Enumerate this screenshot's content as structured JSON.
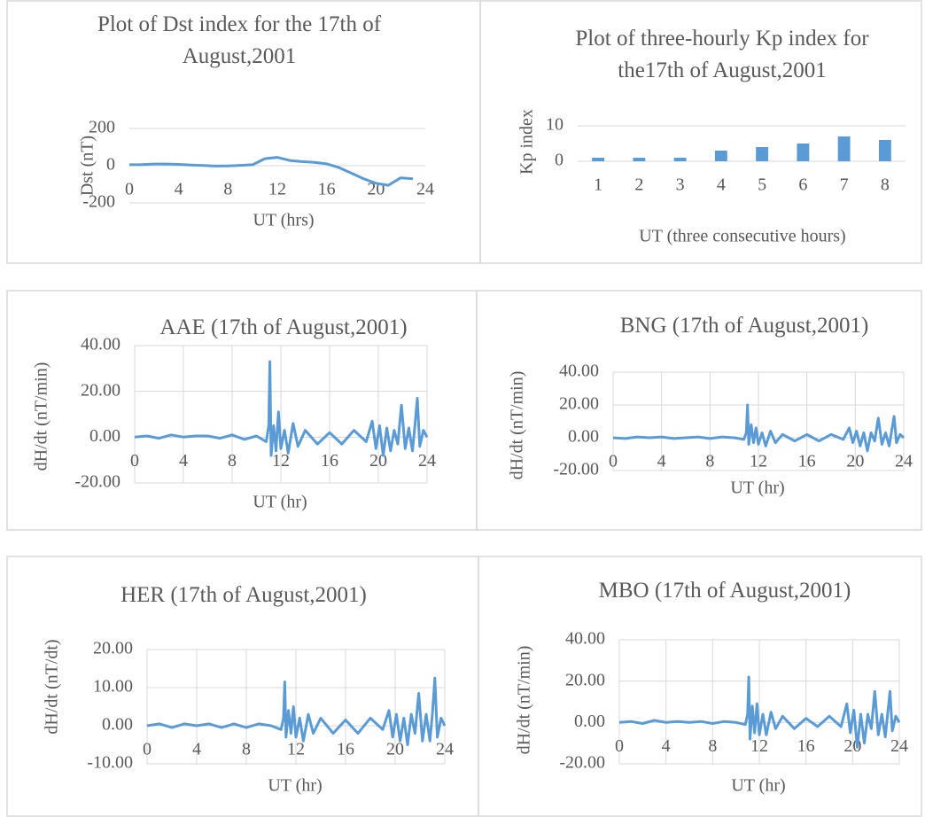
{
  "chart_data": [
    {
      "type": "line",
      "title": "Plot of Dst index for the 17th of August,2001",
      "x_label": "UT (hrs)",
      "y_label": "Dst (nT)",
      "color": "#5b9bd5",
      "x": [
        0,
        1,
        2,
        3,
        4,
        5,
        6,
        7,
        8,
        9,
        10,
        11,
        12,
        13,
        14,
        15,
        16,
        17,
        18,
        19,
        20,
        21,
        22,
        23
      ],
      "values": [
        5,
        6,
        9,
        9,
        7,
        4,
        1,
        -2,
        -1,
        2,
        5,
        38,
        45,
        28,
        22,
        18,
        10,
        -10,
        -40,
        -70,
        -95,
        -105,
        -65,
        -70
      ],
      "xlim": [
        0,
        24
      ],
      "xticks": [
        0,
        4,
        8,
        12,
        16,
        20,
        24
      ],
      "ylim": [
        -200,
        200
      ],
      "yticks": [
        -200,
        0,
        200
      ],
      "grid": true
    },
    {
      "type": "bar",
      "title": "Plot of three-hourly Kp index for the17th of August,2001",
      "x_label": "UT (three consecutive hours)",
      "y_label": "Kp index",
      "color": "#5b9bd5",
      "categories": [
        "1",
        "2",
        "3",
        "4",
        "5",
        "6",
        "7",
        "8"
      ],
      "values": [
        1,
        1,
        1,
        3,
        4,
        5,
        7,
        6
      ],
      "ylim": [
        0,
        10
      ],
      "yticks": [
        0,
        10
      ],
      "grid": true
    },
    {
      "type": "line",
      "title": "AAE (17th of August,2001)",
      "x_label": "UT (hr)",
      "y_label": "dH/dt (nT/min)",
      "color": "#5b9bd5",
      "x": [
        0,
        1,
        2,
        3,
        4,
        5,
        6,
        7,
        8,
        9,
        10,
        10.8,
        11,
        11.1,
        11.2,
        11.4,
        11.6,
        11.8,
        12,
        12.3,
        12.6,
        13,
        13.4,
        14,
        15,
        16,
        17,
        18,
        19,
        19.5,
        19.8,
        20.1,
        20.4,
        20.7,
        21,
        21.3,
        21.6,
        21.9,
        22.2,
        22.5,
        22.8,
        23,
        23.2,
        23.4,
        23.7,
        24
      ],
      "values": [
        0,
        0.5,
        -0.5,
        1,
        0,
        0.5,
        0.5,
        -0.5,
        1,
        -1,
        0.5,
        -2,
        5,
        33,
        -8,
        5,
        -6,
        11,
        -5,
        3,
        -7,
        6,
        -4,
        3,
        -3,
        2,
        -3,
        3,
        -2,
        7,
        -5,
        5,
        -8,
        4,
        -6,
        3,
        -3,
        14,
        -5,
        4,
        -6,
        5,
        17,
        -4,
        3,
        0
      ],
      "xlim": [
        0,
        24
      ],
      "xticks": [
        0,
        4,
        8,
        12,
        16,
        20,
        24
      ],
      "ylim": [
        -20,
        40
      ],
      "yticks": [
        {
          "value": -20,
          "label": "-20.00"
        },
        {
          "value": 0,
          "label": "0.00"
        },
        {
          "value": 20,
          "label": "20.00"
        },
        {
          "value": 40,
          "label": "40.00"
        }
      ],
      "grid": true,
      "xgrid": true
    },
    {
      "type": "line",
      "title": "BNG (17th of August,2001)",
      "x_label": "UT (hr)",
      "y_label": "dH/dt (nT/min)",
      "color": "#5b9bd5",
      "x": [
        0,
        1,
        2,
        3,
        4,
        5,
        6,
        7,
        8,
        9,
        10,
        10.8,
        11,
        11.1,
        11.2,
        11.4,
        11.6,
        11.8,
        12,
        12.3,
        12.6,
        13,
        13.4,
        14,
        15,
        16,
        17,
        18,
        19,
        19.5,
        19.8,
        20.1,
        20.4,
        20.7,
        21,
        21.3,
        21.6,
        21.9,
        22.2,
        22.5,
        22.8,
        23,
        23.2,
        23.4,
        23.7,
        24
      ],
      "values": [
        0,
        -0.5,
        0.5,
        0,
        0.5,
        -0.5,
        0,
        0.5,
        -0.5,
        0.5,
        0,
        -1,
        3,
        20,
        -4,
        8,
        -3,
        6,
        -4,
        3,
        -5,
        4,
        -3,
        2,
        -2,
        2,
        -2,
        2,
        -1,
        6,
        -3,
        4,
        -5,
        3,
        -8,
        3,
        -2,
        12,
        -4,
        3,
        -5,
        4,
        13,
        -3,
        2,
        0
      ],
      "xlim": [
        0,
        24
      ],
      "xticks": [
        0,
        4,
        8,
        12,
        16,
        20,
        24
      ],
      "ylim": [
        -20,
        40
      ],
      "yticks": [
        {
          "value": -20,
          "label": "-20.00"
        },
        {
          "value": 0,
          "label": "0.00"
        },
        {
          "value": 20,
          "label": "20.00"
        },
        {
          "value": 40,
          "label": "40.00"
        }
      ],
      "grid": true,
      "xgrid": true
    },
    {
      "type": "line",
      "title": "HER (17th of August,2001)",
      "x_label": "UT (hr)",
      "y_label": "dH/dt (nT/dt)",
      "color": "#5b9bd5",
      "x": [
        0,
        1,
        2,
        3,
        4,
        5,
        6,
        7,
        8,
        9,
        10,
        10.8,
        11,
        11.1,
        11.2,
        11.4,
        11.6,
        11.8,
        12,
        12.3,
        12.6,
        13,
        13.4,
        14,
        15,
        16,
        17,
        18,
        19,
        19.5,
        19.8,
        20.1,
        20.4,
        20.7,
        21,
        21.3,
        21.6,
        21.9,
        22.2,
        22.5,
        22.8,
        23,
        23.2,
        23.4,
        23.7,
        24
      ],
      "values": [
        0,
        0.5,
        -0.5,
        0.5,
        0,
        0.5,
        -0.5,
        0.5,
        -0.5,
        0.5,
        0,
        -1,
        2,
        11.5,
        -3,
        4,
        -2,
        5,
        -3,
        2,
        -4,
        3,
        -2,
        2,
        -2,
        1.5,
        -2,
        2,
        -1,
        4,
        -3,
        3,
        -4,
        2,
        -5,
        3,
        -2,
        8.5,
        -4,
        3,
        -4,
        3,
        12.5,
        -3,
        2,
        0
      ],
      "xlim": [
        0,
        24
      ],
      "xticks": [
        0,
        4,
        8,
        12,
        16,
        20,
        24
      ],
      "ylim": [
        -10,
        20
      ],
      "yticks": [
        {
          "value": -10,
          "label": "-10.00"
        },
        {
          "value": 0,
          "label": "0.00"
        },
        {
          "value": 10,
          "label": "10.00"
        },
        {
          "value": 20,
          "label": "20.00"
        }
      ],
      "grid": true,
      "xgrid": true
    },
    {
      "type": "line",
      "title": "MBO (17th of August,2001)",
      "x_label": "UT (hr)",
      "y_label": "dH/dt (nT/min)",
      "color": "#5b9bd5",
      "x": [
        0,
        1,
        2,
        3,
        4,
        5,
        6,
        7,
        8,
        9,
        10,
        10.8,
        11,
        11.1,
        11.2,
        11.4,
        11.6,
        11.8,
        12,
        12.3,
        12.6,
        13,
        13.4,
        14,
        15,
        16,
        17,
        18,
        19,
        19.5,
        19.8,
        20.1,
        20.4,
        20.7,
        21,
        21.3,
        21.6,
        21.9,
        22.2,
        22.5,
        22.8,
        23,
        23.2,
        23.4,
        23.7,
        24
      ],
      "values": [
        0,
        0.5,
        -0.5,
        1,
        0,
        0.5,
        0,
        0.5,
        -0.5,
        0.5,
        0,
        -1,
        4,
        22,
        -8,
        8,
        -5,
        9,
        -6,
        4,
        -6,
        5,
        -3,
        3,
        -3,
        2,
        -2,
        3,
        -2,
        9,
        -5,
        6,
        -12,
        4,
        -10,
        4,
        -3,
        15,
        -6,
        4,
        -7,
        4,
        15,
        -4,
        3,
        0
      ],
      "xlim": [
        0,
        24
      ],
      "xticks": [
        0,
        4,
        8,
        12,
        16,
        20,
        24
      ],
      "ylim": [
        -20,
        40
      ],
      "yticks": [
        {
          "value": -20,
          "label": "-20.00"
        },
        {
          "value": 0,
          "label": "0.00"
        },
        {
          "value": 20,
          "label": "20.00"
        },
        {
          "value": 40,
          "label": "40.00"
        }
      ],
      "grid": true,
      "xgrid": true
    }
  ]
}
